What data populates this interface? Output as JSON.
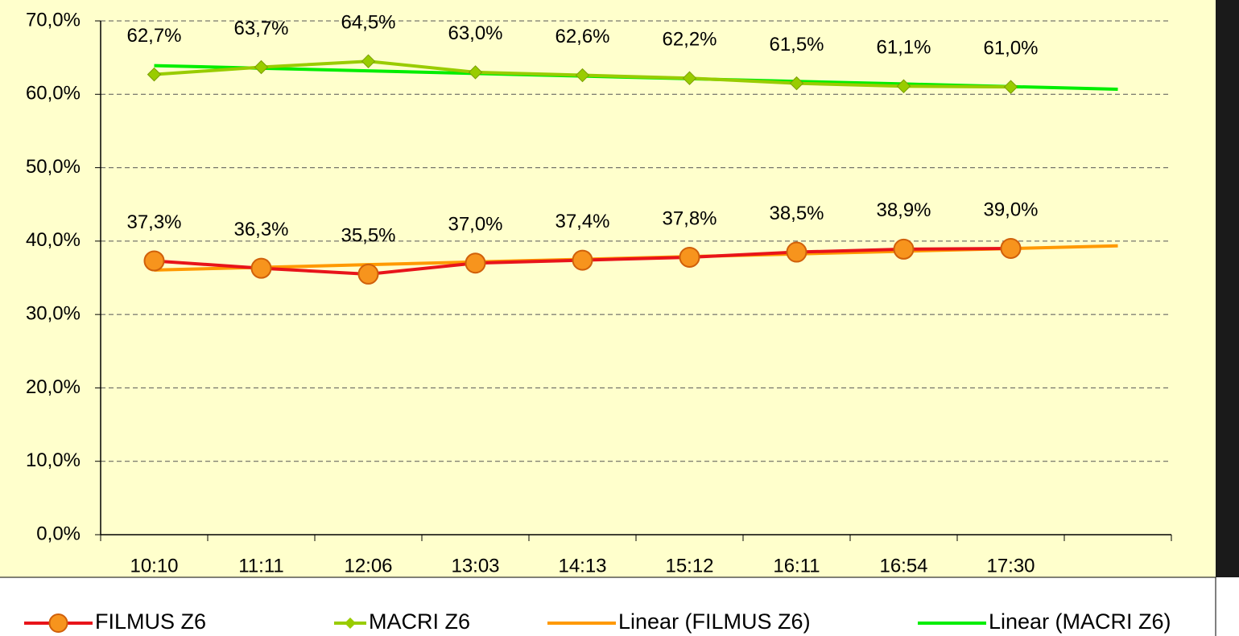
{
  "chart_data": {
    "type": "line",
    "categories": [
      "10:10",
      "11:11",
      "12:06",
      "13:03",
      "14:13",
      "15:12",
      "16:11",
      "16:54",
      "17:30",
      null
    ],
    "series": [
      {
        "name": "FILMUS Z6",
        "color": "#e8141a",
        "marker": "circle",
        "marker_color": "#f7941d",
        "values": [
          37.3,
          36.3,
          35.5,
          37.0,
          37.4,
          37.8,
          38.5,
          38.9,
          39.0,
          null
        ],
        "value_labels": [
          "37,3%",
          "36,3%",
          "35,5%",
          "37,0%",
          "37,4%",
          "37,8%",
          "38,5%",
          "38,9%",
          "39,0%",
          null
        ]
      },
      {
        "name": "MACRI Z6",
        "color": "#99cc00",
        "marker": "diamond",
        "marker_color": "#99cc00",
        "values": [
          62.7,
          63.7,
          64.5,
          63.0,
          62.6,
          62.2,
          61.5,
          61.1,
          61.0,
          null
        ],
        "value_labels": [
          "62,7%",
          "63,7%",
          "64,5%",
          "63,0%",
          "62,6%",
          "62,2%",
          "61,5%",
          "61,1%",
          "61,0%",
          null
        ]
      },
      {
        "name": "Linear (FILMUS Z6)",
        "color": "#ff9900",
        "values": [
          36.06,
          36.42,
          36.79,
          37.16,
          37.52,
          37.89,
          38.25,
          38.62,
          38.99,
          39.35
        ]
      },
      {
        "name": "Linear (MACRI Z6)",
        "color": "#00ee00",
        "values": [
          63.91,
          63.55,
          63.19,
          62.84,
          62.48,
          62.12,
          61.76,
          61.41,
          61.05,
          60.69
        ]
      }
    ],
    "ylim": [
      0,
      70
    ],
    "yticks": [
      {
        "value": 0,
        "label": "0,0%"
      },
      {
        "value": 10,
        "label": "10,0%"
      },
      {
        "value": 20,
        "label": "20,0%"
      },
      {
        "value": 30,
        "label": "30,0%"
      },
      {
        "value": 40,
        "label": "40,0%"
      },
      {
        "value": 50,
        "label": "50,0%"
      },
      {
        "value": 60,
        "label": "60,0%"
      },
      {
        "value": 70,
        "label": "70,0%"
      }
    ],
    "grid": true,
    "legend": "bottom"
  }
}
